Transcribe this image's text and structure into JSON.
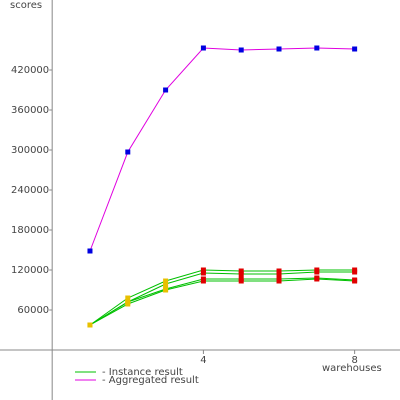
{
  "chart_data": {
    "type": "line",
    "y_label": "scores",
    "x_label": "warehouses",
    "x": [
      1,
      2,
      3,
      4,
      5,
      6,
      7,
      8
    ],
    "xlim": [
      -1.38,
      9.2
    ],
    "ylim": [
      -75000,
      525000
    ],
    "xticks": [
      4,
      8
    ],
    "yticks": [
      60000,
      120000,
      180000,
      240000,
      300000,
      360000,
      420000
    ],
    "legend": [
      {
        "label": "- Instance result",
        "color": "#00c000"
      },
      {
        "label": "- Aggregated result",
        "color": "#e000e0"
      }
    ],
    "series": [
      {
        "color": "#e000e0",
        "marker_colors": [
          "#0000e0",
          "#0000e0",
          "#0000e0",
          "#0000e0",
          "#0000e0",
          "#0000e0",
          "#0000e0",
          "#0000e0"
        ],
        "values": [
          148500,
          297000,
          390000,
          453000,
          450000,
          451500,
          453000,
          451500
        ]
      },
      {
        "color": "#00c000",
        "marker_colors": [
          "#e8c000",
          "#e8c000",
          "#e8c000",
          "#e00000",
          "#e00000",
          "#e00000",
          "#e00000",
          "#e00000"
        ],
        "values": [
          37500,
          78000,
          103500,
          120000,
          118500,
          118500,
          120000,
          120000
        ]
      },
      {
        "color": "#00c000",
        "marker_colors": [
          "#e8c000",
          "#e8c000",
          "#e8c000",
          "#e00000",
          "#e00000",
          "#e00000",
          "#e00000",
          "#e00000"
        ],
        "values": [
          37500,
          72000,
          99000,
          115500,
          114000,
          114000,
          117000,
          117000
        ]
      },
      {
        "color": "#00c000",
        "marker_colors": [
          "#e8c000",
          "#e8c000",
          "#e8c000",
          "#e00000",
          "#e00000",
          "#e00000",
          "#e00000",
          "#e00000"
        ],
        "values": [
          37500,
          72000,
          91500,
          106500,
          106500,
          106500,
          108000,
          105000
        ]
      },
      {
        "color": "#00c000",
        "marker_colors": [
          "#e8c000",
          "#e8c000",
          "#e8c000",
          "#e00000",
          "#e00000",
          "#e00000",
          "#e00000",
          "#e00000"
        ],
        "values": [
          37500,
          69000,
          90000,
          103500,
          103500,
          103500,
          106500,
          103500
        ]
      }
    ]
  }
}
